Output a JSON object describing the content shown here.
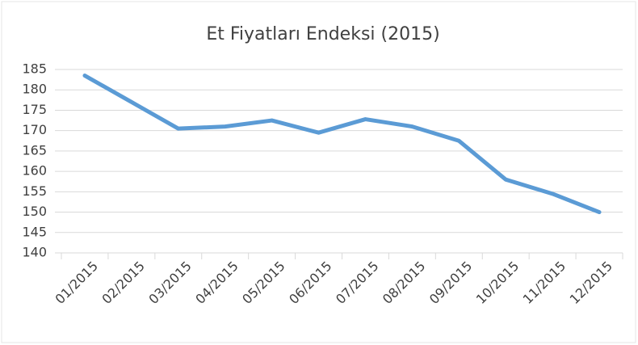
{
  "chart_data": {
    "type": "line",
    "title": "Et Fiyatları Endeksi (2015)",
    "categories": [
      "01/2015",
      "02/2015",
      "03/2015",
      "04/2015",
      "05/2015",
      "06/2015",
      "07/2015",
      "08/2015",
      "09/2015",
      "10/2015",
      "11/2015",
      "12/2015"
    ],
    "series": [
      {
        "name": "Et Fiyatları Endeksi",
        "color": "#5b9bd5",
        "values": [
          183.5,
          177,
          170.5,
          171,
          172.5,
          169.5,
          172.8,
          171,
          167.5,
          158,
          154.5,
          150
        ]
      }
    ],
    "ylim": [
      140,
      185
    ],
    "yticks": [
      140,
      145,
      150,
      155,
      160,
      165,
      170,
      175,
      180,
      185
    ],
    "grid": true,
    "legend": false
  }
}
